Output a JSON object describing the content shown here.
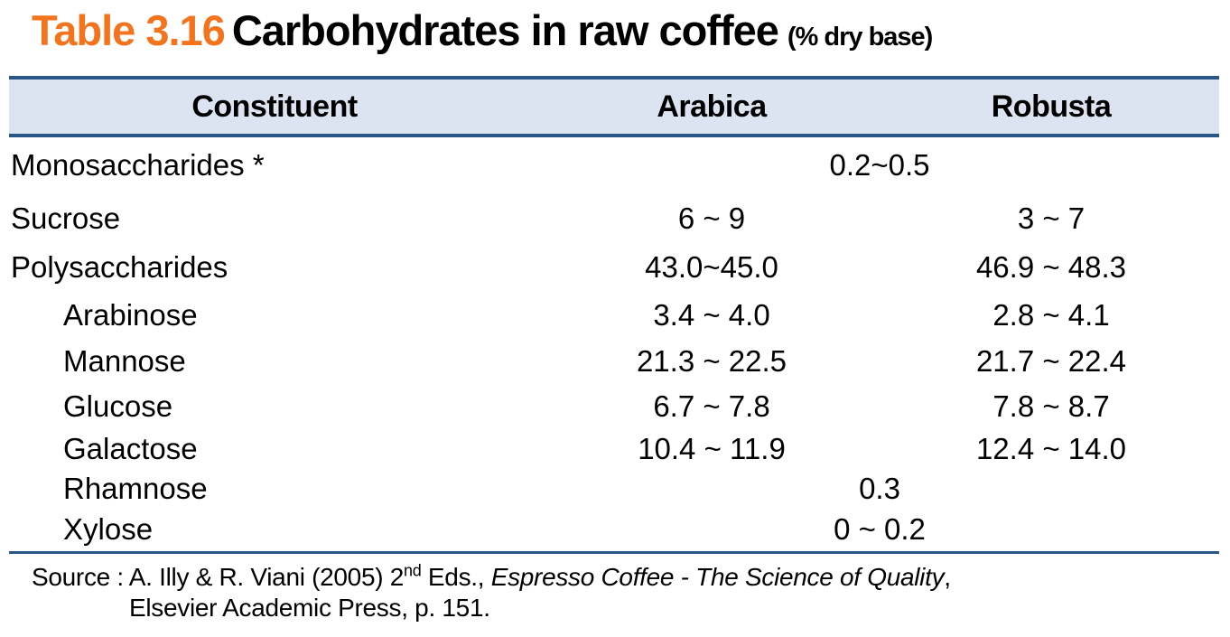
{
  "title": {
    "label": "Table 3.16",
    "text": "Carbohydrates in raw coffee",
    "unit": "(% dry base)"
  },
  "table": {
    "columns": [
      "Constituent",
      "Arabica",
      "Robusta"
    ],
    "rows": [
      {
        "name": "Monosaccharides *",
        "span": "0.2~0.5"
      },
      {
        "name": "Sucrose",
        "arabica": "6 ~ 9",
        "robusta": "3 ~ 7"
      },
      {
        "name": "Polysaccharides",
        "arabica": "43.0~45.0",
        "robusta": "46.9 ~ 48.3"
      },
      {
        "name": "Arabinose",
        "arabica": "3.4 ~ 4.0",
        "robusta": "2.8 ~ 4.1"
      },
      {
        "name": "Mannose",
        "arabica": "21.3 ~ 22.5",
        "robusta": "21.7 ~ 22.4"
      },
      {
        "name": "Glucose",
        "arabica": "6.7 ~ 7.8",
        "robusta": "7.8 ~ 8.7"
      },
      {
        "name": "Galactose",
        "arabica": "10.4 ~ 11.9",
        "robusta": "12.4 ~ 14.0"
      },
      {
        "name": "Rhamnose",
        "span": "0.3"
      },
      {
        "name": "Xylose",
        "span": "0 ~ 0.2"
      }
    ]
  },
  "source": {
    "prefix": "Source : A. Illy & R. Viani (2005) 2",
    "superscript": "nd",
    "mid": " Eds., ",
    "book_title": "Espresso Coffee - The Science of Quality",
    "suffix": ",",
    "line2": "Elsevier Academic Press, p. 151."
  },
  "colors": {
    "accent_orange": "#f4731d",
    "header_background": "#dce4f1",
    "border_navy": "#2a5788"
  }
}
